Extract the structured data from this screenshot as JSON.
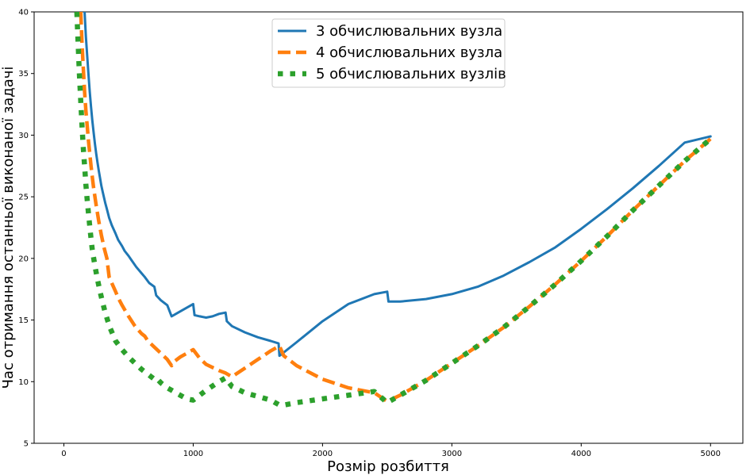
{
  "chart_data": {
    "type": "line",
    "title": "",
    "xlabel": "Розмір розбиття",
    "ylabel": "Час отримання останньої виконаної задачі",
    "xlim": [
      -230,
      5250
    ],
    "ylim": [
      5,
      40
    ],
    "xticks": [
      "0",
      "1000",
      "2000",
      "3000",
      "4000",
      "5000"
    ],
    "yticks": [
      "5",
      "10",
      "15",
      "20",
      "25",
      "30",
      "35",
      "40"
    ],
    "grid": false,
    "legend_position": "upper center",
    "series": [
      {
        "name": "3 обчислювальних вузла",
        "color": "#1f77b4",
        "style": "solid",
        "x": [
          160,
          170,
          180,
          190,
          200,
          210,
          220,
          230,
          240,
          250,
          260,
          270,
          280,
          290,
          300,
          320,
          333,
          350,
          370,
          400,
          420,
          450,
          470,
          500,
          520,
          560,
          600,
          625,
          660,
          700,
          714,
          750,
          800,
          833,
          900,
          1000,
          1010,
          1050,
          1100,
          1150,
          1200,
          1250,
          1260,
          1300,
          1400,
          1500,
          1600,
          1660,
          1667,
          1680,
          1800,
          2000,
          2200,
          2400,
          2500,
          2510,
          2600,
          2800,
          3000,
          3200,
          3400,
          3600,
          3800,
          4000,
          4200,
          4400,
          4600,
          4800,
          5000
        ],
        "y": [
          40,
          38.0,
          36.5,
          35.0,
          33.5,
          32.3,
          31.2,
          30.2,
          29.3,
          28.5,
          27.8,
          27.1,
          26.5,
          25.9,
          25.4,
          24.5,
          24.0,
          23.3,
          22.7,
          22.0,
          21.5,
          21.0,
          20.6,
          20.2,
          19.9,
          19.3,
          18.8,
          18.5,
          18.0,
          17.7,
          17.0,
          16.6,
          16.2,
          15.3,
          15.7,
          16.3,
          15.4,
          15.3,
          15.2,
          15.3,
          15.5,
          15.6,
          14.9,
          14.5,
          14.0,
          13.6,
          13.3,
          13.1,
          12.1,
          12.2,
          13.2,
          14.9,
          16.3,
          17.1,
          17.3,
          16.5,
          16.5,
          16.7,
          17.1,
          17.7,
          18.6,
          19.7,
          20.9,
          22.4,
          24.0,
          25.7,
          27.5,
          29.4,
          29.9
        ]
      },
      {
        "name": "4 обчислювальних вузла",
        "color": "#ff7f0e",
        "style": "dashed",
        "x": [
          130,
          140,
          150,
          160,
          170,
          180,
          190,
          200,
          210,
          220,
          230,
          250,
          270,
          290,
          310,
          333,
          350,
          370,
          400,
          420,
          450,
          500,
          550,
          600,
          625,
          650,
          700,
          750,
          800,
          833,
          850,
          900,
          950,
          1000,
          1050,
          1100,
          1200,
          1250,
          1300,
          1400,
          1500,
          1600,
          1667,
          1700,
          1800,
          2000,
          2200,
          2400,
          2500,
          2600,
          2800,
          3000,
          3200,
          3400,
          3600,
          3800,
          4000,
          4200,
          4400,
          4600,
          4800,
          5000
        ],
        "y": [
          40,
          37.5,
          35.5,
          33.5,
          32.0,
          30.8,
          29.6,
          28.5,
          27.5,
          26.6,
          25.7,
          24.3,
          23.0,
          21.9,
          20.9,
          20.0,
          18.5,
          18.0,
          17.3,
          16.8,
          16.2,
          15.3,
          14.5,
          13.9,
          13.7,
          13.3,
          12.8,
          12.3,
          11.8,
          11.3,
          11.6,
          12.0,
          12.3,
          12.6,
          11.9,
          11.4,
          10.9,
          10.7,
          10.4,
          11.1,
          11.8,
          12.5,
          12.9,
          12.1,
          11.3,
          10.2,
          9.5,
          9.1,
          8.4,
          8.9,
          10.1,
          11.5,
          12.9,
          14.4,
          16.1,
          17.9,
          19.8,
          21.8,
          23.9,
          25.9,
          27.9,
          29.7
        ]
      },
      {
        "name": "5 обчислювальних вузлів",
        "color": "#2ca02c",
        "style": "dotted",
        "x": [
          100,
          110,
          120,
          130,
          140,
          150,
          160,
          170,
          180,
          190,
          200,
          210,
          220,
          240,
          260,
          280,
          300,
          320,
          340,
          360,
          400,
          450,
          500,
          550,
          600,
          650,
          700,
          714,
          750,
          800,
          850,
          900,
          950,
          1000,
          1100,
          1200,
          1250,
          1300,
          1400,
          1500,
          1600,
          1667,
          1700,
          1800,
          2000,
          2200,
          2400,
          2500,
          2600,
          2800,
          3000,
          3200,
          3400,
          3600,
          3800,
          4000,
          4200,
          4400,
          4600,
          4800,
          5000
        ],
        "y": [
          40,
          37.5,
          35.0,
          32.8,
          30.8,
          29.0,
          27.5,
          26.0,
          24.8,
          23.7,
          22.6,
          21.6,
          20.7,
          19.4,
          18.3,
          17.3,
          16.4,
          15.6,
          14.9,
          14.3,
          13.3,
          12.6,
          12.0,
          11.5,
          11.0,
          10.6,
          10.2,
          10.3,
          9.9,
          9.5,
          9.2,
          8.9,
          8.6,
          8.5,
          9.3,
          10.0,
          10.3,
          9.6,
          9.1,
          8.8,
          8.5,
          8.1,
          8.1,
          8.3,
          8.6,
          8.9,
          9.2,
          8.3,
          8.9,
          10.1,
          11.5,
          12.9,
          14.4,
          16.1,
          17.9,
          19.8,
          21.8,
          23.9,
          25.9,
          27.9,
          29.7
        ]
      }
    ]
  }
}
